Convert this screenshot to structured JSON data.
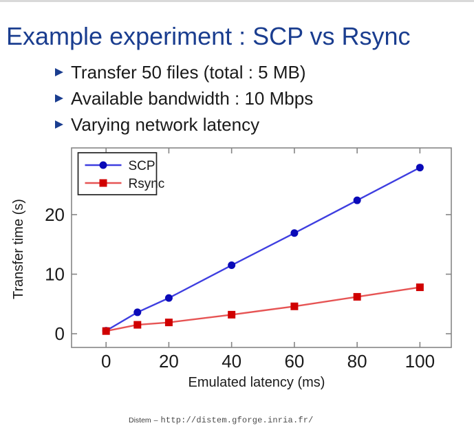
{
  "slide": {
    "title": "Example experiment : SCP vs Rsync",
    "bullets": [
      "Transfer 50 files (total : 5 MB)",
      "Available bandwidth : 10 Mbps",
      "Varying network latency"
    ],
    "footer": {
      "app": "Distem",
      "separator": "–",
      "url": "http://distem.gforge.inria.fr/"
    }
  },
  "colors": {
    "title": "#1a3d8f",
    "bullet_marker": "#1a3d8f",
    "text": "#1a1a1a",
    "top_border": "#d9d9d9",
    "axis_frame": "#858585",
    "legend_border": "#222222",
    "footer_text": "#3a3a3a"
  },
  "chart_data": {
    "type": "line",
    "title": "",
    "xlabel": "Emulated latency (ms)",
    "ylabel": "Transfer time (s)",
    "x": [
      0,
      10,
      20,
      40,
      60,
      80,
      100
    ],
    "series": [
      {
        "name": "SCP",
        "values": [
          0.5,
          3.6,
          6.0,
          11.5,
          16.9,
          22.4,
          27.9
        ],
        "line_color": "#3e3ee0",
        "marker_color": "#0a0ab8",
        "marker": "circle"
      },
      {
        "name": "Rsync",
        "values": [
          0.45,
          1.5,
          1.9,
          3.2,
          4.6,
          6.2,
          7.8
        ],
        "line_color": "#e65454",
        "marker_color": "#d00000",
        "marker": "square"
      }
    ],
    "xticks": [
      0,
      20,
      40,
      60,
      80,
      100
    ],
    "yticks": [
      0,
      10,
      20
    ],
    "xlim": [
      -11,
      110
    ],
    "ylim": [
      -2.3,
      31.2
    ],
    "grid": false,
    "legend_position": "top-left"
  }
}
